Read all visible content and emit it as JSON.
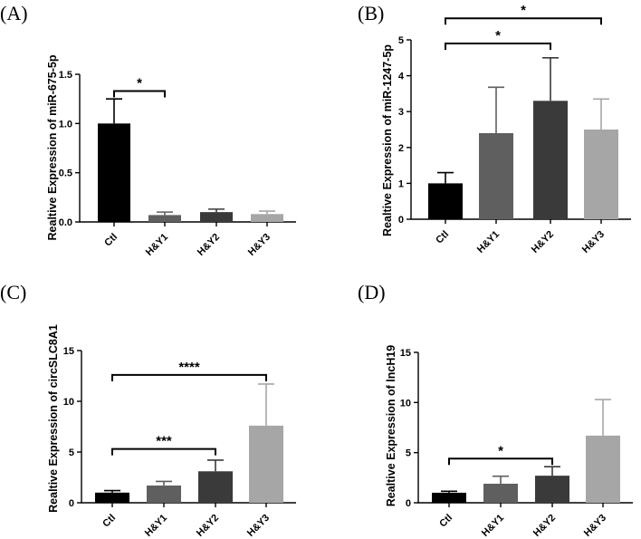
{
  "chart_data": [
    {
      "panel": "(A)",
      "type": "bar",
      "ylabel": "Realtive Expression of miR-675-5p",
      "categories": [
        "Ctl",
        "H&Y1",
        "H&Y2",
        "H&Y3"
      ],
      "values": [
        1.0,
        0.07,
        0.1,
        0.08
      ],
      "errors": [
        0.25,
        0.03,
        0.03,
        0.03
      ],
      "colors": [
        "#000000",
        "#5f5f5f",
        "#3a3a3a",
        "#a6a6a6"
      ],
      "ylim": [
        0,
        1.5
      ],
      "yticks": [
        0.0,
        0.5,
        1.0,
        1.5
      ],
      "ytick_labels": [
        "0.0",
        "0.5",
        "1.0",
        "1.5"
      ],
      "significance": [
        {
          "from": 0,
          "to": 1,
          "label": "*",
          "y": 1.33
        }
      ]
    },
    {
      "panel": "(B)",
      "type": "bar",
      "ylabel": "Realtive Expression of miR-1247-5p",
      "categories": [
        "Ctl",
        "H&Y1",
        "H&Y2",
        "H&Y3"
      ],
      "values": [
        1.0,
        2.4,
        3.3,
        2.5
      ],
      "errors": [
        0.3,
        1.28,
        1.2,
        0.85
      ],
      "colors": [
        "#000000",
        "#5f5f5f",
        "#3a3a3a",
        "#a6a6a6"
      ],
      "ylim": [
        0,
        5
      ],
      "yticks": [
        0,
        1,
        2,
        3,
        4,
        5
      ],
      "ytick_labels": [
        "0",
        "1",
        "2",
        "3",
        "4",
        "5"
      ],
      "significance": [
        {
          "from": 0,
          "to": 2,
          "label": "*",
          "y": 4.9
        },
        {
          "from": 0,
          "to": 3,
          "label": "*",
          "y": 5.6
        }
      ]
    },
    {
      "panel": "(C)",
      "type": "bar",
      "ylabel": "Realtive Expression of circSLC8A1",
      "categories": [
        "Ctl",
        "H&Y1",
        "H&Y2",
        "H&Y3"
      ],
      "values": [
        1.0,
        1.7,
        3.1,
        7.6
      ],
      "errors": [
        0.2,
        0.4,
        1.1,
        4.1
      ],
      "colors": [
        "#000000",
        "#5f5f5f",
        "#3a3a3a",
        "#a6a6a6"
      ],
      "ylim": [
        0,
        15
      ],
      "yticks": [
        0,
        5,
        10,
        15
      ],
      "ytick_labels": [
        "0",
        "5",
        "10",
        "15"
      ],
      "significance": [
        {
          "from": 0,
          "to": 2,
          "label": "***",
          "y": 5.3
        },
        {
          "from": 0,
          "to": 3,
          "label": "****",
          "y": 12.6
        }
      ]
    },
    {
      "panel": "(D)",
      "type": "bar",
      "ylabel": "Realtive Expression of lncH19",
      "categories": [
        "Ctl",
        "H&Y1",
        "H&Y2",
        "H&Y3"
      ],
      "values": [
        1.0,
        1.9,
        2.7,
        6.7
      ],
      "errors": [
        0.15,
        0.75,
        0.9,
        3.6
      ],
      "colors": [
        "#000000",
        "#5f5f5f",
        "#3a3a3a",
        "#a6a6a6"
      ],
      "ylim": [
        0,
        15
      ],
      "yticks": [
        0,
        5,
        10,
        15
      ],
      "ytick_labels": [
        "0",
        "5",
        "10",
        "15"
      ],
      "significance": [
        {
          "from": 0,
          "to": 2,
          "label": "*",
          "y": 4.4
        }
      ]
    }
  ]
}
